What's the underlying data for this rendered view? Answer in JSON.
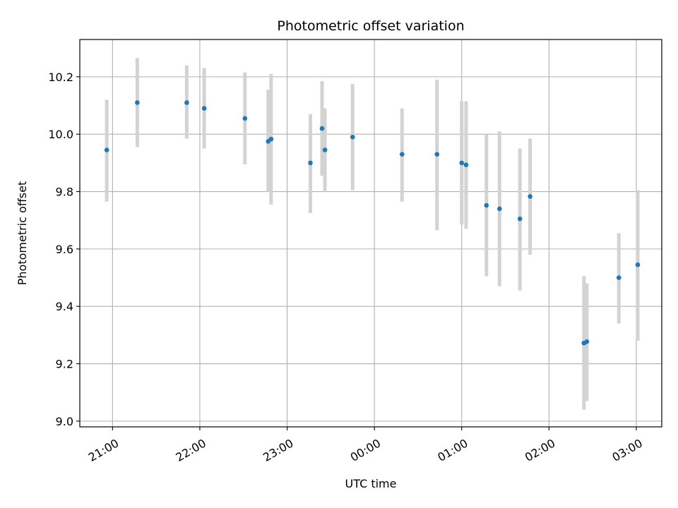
{
  "chart_data": {
    "type": "scatter",
    "title": "Photometric offset variation",
    "xlabel": "UTC time",
    "ylabel": "Photometric offset",
    "x_ticks": [
      "21:00",
      "22:00",
      "23:00",
      "00:00",
      "01:00",
      "02:00",
      "03:00"
    ],
    "x_tick_values_minutes": [
      1260,
      1320,
      1380,
      1440,
      1500,
      1560,
      1620
    ],
    "xlim_minutes": [
      1237.5,
      1637.5
    ],
    "y_ticks": [
      "9.0",
      "9.2",
      "9.4",
      "9.6",
      "9.8",
      "10.0",
      "10.2"
    ],
    "y_tick_values": [
      9.0,
      9.2,
      9.4,
      9.6,
      9.8,
      10.0,
      10.2
    ],
    "ylim": [
      8.98,
      10.33
    ],
    "grid": true,
    "point_color": "#1f77b4",
    "errorbar_color": "#d3d3d3",
    "points": [
      {
        "time": "20:56",
        "y": 9.945,
        "low": 9.765,
        "high": 10.12
      },
      {
        "time": "21:17",
        "y": 10.11,
        "low": 9.955,
        "high": 10.265
      },
      {
        "time": "21:51",
        "y": 10.11,
        "low": 9.985,
        "high": 10.24
      },
      {
        "time": "22:03",
        "y": 10.09,
        "low": 9.95,
        "high": 10.23
      },
      {
        "time": "22:31",
        "y": 10.055,
        "low": 9.895,
        "high": 10.215
      },
      {
        "time": "22:47",
        "y": 9.975,
        "low": 9.8,
        "high": 10.155
      },
      {
        "time": "22:49",
        "y": 9.983,
        "low": 9.755,
        "high": 10.21
      },
      {
        "time": "23:16",
        "y": 9.9,
        "low": 9.725,
        "high": 10.07
      },
      {
        "time": "23:24",
        "y": 10.02,
        "low": 9.855,
        "high": 10.185
      },
      {
        "time": "23:26",
        "y": 9.945,
        "low": 9.8,
        "high": 10.09
      },
      {
        "time": "23:45",
        "y": 9.99,
        "low": 9.805,
        "high": 10.175
      },
      {
        "time": "00:19",
        "y": 9.93,
        "low": 9.765,
        "high": 10.09
      },
      {
        "time": "00:43",
        "y": 9.93,
        "low": 9.665,
        "high": 10.19
      },
      {
        "time": "01:00",
        "y": 9.9,
        "low": 9.685,
        "high": 10.115
      },
      {
        "time": "01:03",
        "y": 9.893,
        "low": 9.67,
        "high": 10.115
      },
      {
        "time": "01:17",
        "y": 9.752,
        "low": 9.505,
        "high": 10.0
      },
      {
        "time": "01:26",
        "y": 9.74,
        "low": 9.47,
        "high": 10.01
      },
      {
        "time": "01:40",
        "y": 9.705,
        "low": 9.455,
        "high": 9.95
      },
      {
        "time": "01:47",
        "y": 9.783,
        "low": 9.58,
        "high": 9.985
      },
      {
        "time": "02:24",
        "y": 9.272,
        "low": 9.04,
        "high": 9.505
      },
      {
        "time": "02:26",
        "y": 9.277,
        "low": 9.07,
        "high": 9.48
      },
      {
        "time": "02:48",
        "y": 9.5,
        "low": 9.34,
        "high": 9.655
      },
      {
        "time": "03:01",
        "y": 9.545,
        "low": 9.28,
        "high": 9.805
      }
    ]
  }
}
